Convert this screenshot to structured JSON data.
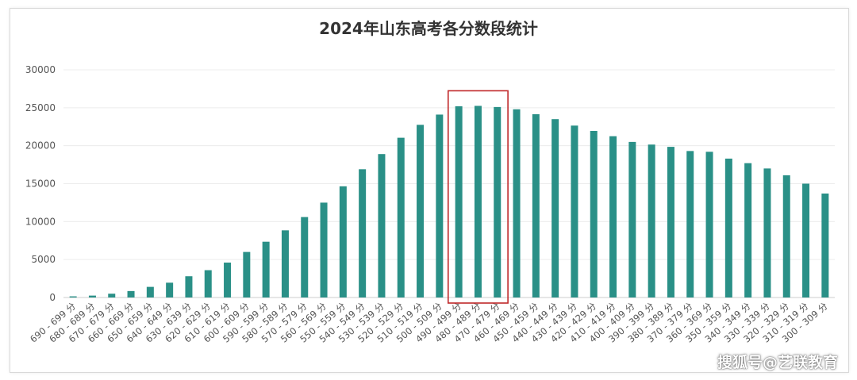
{
  "chart_data": {
    "type": "bar",
    "title": "2024年山东高考各分数段统计",
    "categories": [
      "690 - 699 分",
      "680 - 689 分",
      "670 - 679 分",
      "660 - 669 分",
      "650 - 659 分",
      "640 - 649 分",
      "630 - 639 分",
      "620 - 629 分",
      "610 - 619 分",
      "600 - 609 分",
      "590 - 599 分",
      "580 - 589 分",
      "570 - 579 分",
      "560 - 569 分",
      "550 - 559 分",
      "540 - 549 分",
      "530 - 539 分",
      "520 - 529 分",
      "510 - 519 分",
      "500 - 509 分",
      "490 - 499 分",
      "480 - 489 分",
      "470 - 479 分",
      "460 - 469 分",
      "450 - 459 分",
      "440 - 449 分",
      "430 - 439 分",
      "420 - 429 分",
      "410 - 419 分",
      "400 - 409 分",
      "390 - 399 分",
      "380 - 389 分",
      "370 - 379 分",
      "360 - 369 分",
      "350 - 359 分",
      "340 - 349 分",
      "330 - 339 分",
      "320 - 329 分",
      "310 - 319 分",
      "300 - 309 分"
    ],
    "values": [
      150,
      250,
      500,
      850,
      1400,
      1950,
      2800,
      3600,
      4600,
      6000,
      7350,
      8850,
      10600,
      12500,
      14650,
      16900,
      18900,
      21050,
      22750,
      24100,
      25200,
      25250,
      25100,
      24800,
      24150,
      23500,
      22650,
      21950,
      21250,
      20500,
      20150,
      19850,
      19300,
      19200,
      18300,
      17700,
      17000,
      16100,
      15000,
      13700
    ],
    "ylim": [
      0,
      30000
    ],
    "yticks": [
      0,
      5000,
      10000,
      15000,
      20000,
      25000,
      30000
    ],
    "xlabel": "",
    "ylabel": "",
    "grid": true,
    "bar_color": "#2a9087",
    "highlight": {
      "categories": [
        "490 - 499 分",
        "480 - 489 分",
        "470 - 479 分"
      ],
      "color": "#c0282a"
    }
  },
  "watermark": "搜狐号@艺联教育"
}
